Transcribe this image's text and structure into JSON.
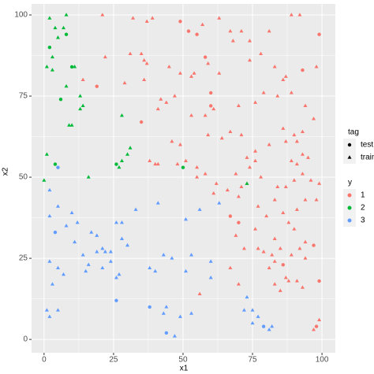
{
  "chart_data": {
    "type": "scatter",
    "x_label": "x1",
    "y_label": "x2",
    "xlim": [
      -4.5,
      104.8
    ],
    "ylim": [
      -4.1,
      103.4
    ],
    "xticks": [
      0,
      25,
      50,
      75,
      100
    ],
    "yticks": [
      0,
      25,
      50,
      75,
      100
    ],
    "grid": true,
    "shape_legend": {
      "title": "tag",
      "labels": [
        "test",
        "train"
      ]
    },
    "color_legend_title": "y",
    "series": [
      {
        "name": "1",
        "color": "#F8766D",
        "x": [
          21,
          32,
          37,
          39,
          49,
          52,
          55,
          57,
          63,
          67,
          71,
          68,
          74,
          81,
          89,
          92,
          99,
          22,
          31,
          35,
          36,
          37,
          45,
          54,
          49,
          53,
          58,
          59,
          63,
          74,
          78,
          83,
          86,
          87,
          93,
          98,
          14,
          19,
          29,
          36,
          42,
          44,
          47,
          41,
          53,
          58,
          60,
          60,
          61,
          70,
          76,
          79,
          84,
          89,
          94,
          86,
          90,
          93,
          97,
          35,
          46,
          49,
          59,
          64,
          67,
          71,
          73,
          76,
          81,
          87,
          91,
          93,
          89,
          91,
          95,
          38,
          40,
          41,
          48,
          51,
          55,
          55,
          58,
          62,
          69,
          71,
          74,
          76,
          78,
          84,
          87,
          90,
          93,
          96,
          99,
          61,
          66,
          70,
          73,
          77,
          80,
          83,
          86,
          88,
          91,
          94,
          98,
          90,
          83,
          76,
          72,
          79,
          82,
          85,
          89,
          92,
          94,
          97,
          67,
          69,
          70,
          77,
          83,
          86,
          94,
          67,
          70,
          81,
          83,
          85,
          87,
          88,
          91,
          93,
          99,
          98,
          99,
          97,
          56
        ],
        "y": [
          100,
          99,
          98,
          99,
          98,
          95,
          94,
          97,
          99,
          95,
          95,
          92,
          92,
          95,
          100,
          100,
          94,
          87,
          88,
          88,
          86,
          85,
          84,
          82,
          82,
          81,
          87,
          85,
          82,
          86,
          88,
          84,
          80,
          81,
          83,
          84,
          80,
          78,
          79,
          80,
          74,
          73,
          75,
          71,
          69,
          69,
          76,
          72,
          71,
          72,
          73,
          76,
          75,
          76,
          72,
          65,
          63,
          64,
          68,
          67,
          61,
          60,
          63,
          62,
          64,
          63,
          56,
          58,
          60,
          61,
          61,
          57,
          55,
          54,
          56,
          55,
          54,
          54,
          54,
          55,
          53,
          50,
          51,
          48,
          51,
          47,
          53,
          55,
          50,
          47,
          47,
          49,
          51,
          49,
          48,
          45,
          46,
          44,
          48,
          41,
          38,
          43,
          39,
          36,
          40,
          43,
          43,
          34,
          31,
          34,
          28,
          27,
          26,
          28,
          26,
          28,
          30,
          29,
          38,
          32,
          36,
          28,
          24,
          23,
          25,
          22,
          17,
          22,
          17,
          15,
          19,
          18,
          18,
          16,
          18,
          4,
          6,
          3,
          14
        ],
        "tag": [
          "train",
          "train",
          "train",
          "train",
          "test",
          "test",
          "test",
          "train",
          "train",
          "train",
          "train",
          "train",
          "train",
          "train",
          "train",
          "train",
          "test",
          "train",
          "train",
          "train",
          "train",
          "train",
          "train",
          "train",
          "train",
          "train",
          "test",
          "train",
          "train",
          "train",
          "train",
          "train",
          "train",
          "train",
          "test",
          "train",
          "train",
          "test",
          "train",
          "train",
          "train",
          "train",
          "train",
          "train",
          "train",
          "train",
          "test",
          "test",
          "train",
          "train",
          "train",
          "train",
          "train",
          "train",
          "train",
          "train",
          "train",
          "train",
          "train",
          "test",
          "train",
          "train",
          "train",
          "train",
          "train",
          "train",
          "train",
          "train",
          "train",
          "train",
          "train",
          "train",
          "train",
          "train",
          "train",
          "train",
          "train",
          "train",
          "train",
          "train",
          "train",
          "train",
          "train",
          "train",
          "train",
          "train",
          "train",
          "train",
          "train",
          "train",
          "train",
          "train",
          "train",
          "train",
          "train",
          "train",
          "train",
          "train",
          "train",
          "train",
          "train",
          "train",
          "train",
          "train",
          "train",
          "train",
          "train",
          "train",
          "train",
          "train",
          "train",
          "train",
          "train",
          "train",
          "train",
          "train",
          "train",
          "test",
          "test",
          "train",
          "test",
          "train",
          "train",
          "test",
          "train",
          "train",
          "train",
          "train",
          "train",
          "train",
          "train",
          "train",
          "train",
          "train",
          "test",
          "test",
          "train",
          "train"
        ]
      },
      {
        "name": "2",
        "color": "#00BA38",
        "x": [
          2,
          8,
          7,
          4,
          8,
          2,
          5,
          3,
          1,
          3,
          10,
          11,
          8,
          13,
          13,
          6,
          14,
          9,
          10,
          28,
          1,
          4,
          16,
          26,
          28,
          30,
          31,
          27,
          50,
          73,
          0
        ],
        "y": [
          99,
          100,
          96,
          96,
          94,
          90,
          93,
          87,
          84,
          83,
          84,
          84,
          78,
          75,
          71,
          74,
          72,
          66,
          66,
          69,
          57,
          54,
          50,
          54,
          55,
          57,
          59,
          53,
          53,
          48,
          49
        ],
        "tag": [
          "train",
          "train",
          "train",
          "train",
          "test",
          "test",
          "train",
          "train",
          "train",
          "train",
          "test",
          "train",
          "train",
          "train",
          "train",
          "test",
          "train",
          "train",
          "train",
          "train",
          "train",
          "test",
          "train",
          "test",
          "train",
          "train",
          "train",
          "train",
          "test",
          "train",
          "train"
        ]
      },
      {
        "name": "3",
        "color": "#619CFF",
        "x": [
          5,
          2,
          5,
          2,
          10,
          12,
          8,
          17,
          4,
          19,
          26,
          28,
          33,
          41,
          51,
          56,
          63,
          19,
          21,
          22,
          24,
          28,
          30,
          14,
          11,
          16,
          24,
          21,
          26,
          27,
          38,
          40,
          46,
          51,
          53,
          60,
          60,
          43,
          2,
          5,
          7,
          3,
          15,
          1,
          2,
          5,
          26,
          38,
          44,
          43,
          49,
          53,
          47,
          44,
          72,
          75,
          73,
          75,
          77,
          81,
          79,
          82
        ],
        "y": [
          53,
          46,
          41,
          38,
          39,
          36,
          35,
          33,
          33,
          32,
          36,
          36,
          40,
          42,
          37,
          40,
          42,
          27,
          28,
          27,
          27,
          31,
          29,
          26,
          30,
          23,
          24,
          22,
          19,
          20,
          22,
          21,
          25,
          21,
          26,
          24,
          19,
          26,
          24,
          22,
          20,
          17,
          21,
          9,
          7,
          9,
          12,
          10,
          10,
          8,
          7,
          8,
          1,
          2,
          9,
          9,
          13,
          5,
          7,
          3,
          4,
          4
        ],
        "tag": [
          "test",
          "train",
          "train",
          "train",
          "train",
          "train",
          "train",
          "train",
          "test",
          "train",
          "train",
          "train",
          "train",
          "train",
          "train",
          "train",
          "train",
          "train",
          "train",
          "train",
          "train",
          "train",
          "train",
          "train",
          "train",
          "train",
          "train",
          "train",
          "train",
          "train",
          "train",
          "train",
          "train",
          "train",
          "train",
          "train",
          "train",
          "train",
          "train",
          "train",
          "train",
          "train",
          "train",
          "train",
          "train",
          "train",
          "test",
          "test",
          "train",
          "train",
          "train",
          "train",
          "train",
          "test",
          "train",
          "train",
          "train",
          "train",
          "train",
          "train",
          "test",
          "train"
        ]
      }
    ]
  }
}
